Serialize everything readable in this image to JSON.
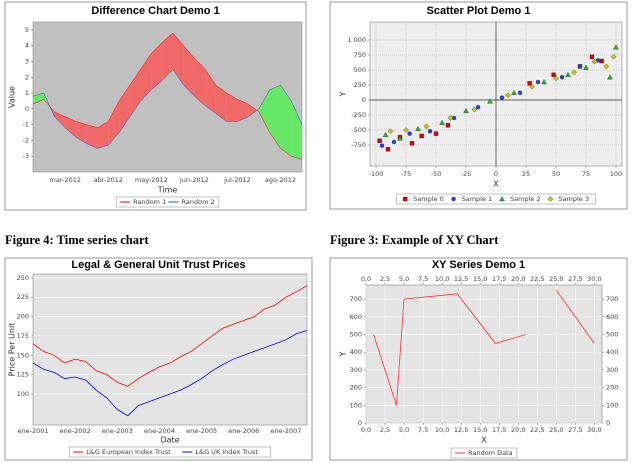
{
  "captions": [
    "Figure 4: Time series chart",
    "Figure 3: Example of XY Chart"
  ],
  "chart_data": [
    {
      "type": "difference",
      "title": "Difference Chart Demo 1",
      "x_label": "Time",
      "y_label": "Value",
      "categories": [
        null,
        null,
        null,
        "mar-2012",
        null,
        null,
        null,
        "abr-2012",
        null,
        null,
        null,
        "may-2012",
        null,
        null,
        null,
        "jun-2012",
        null,
        null,
        null,
        "jul-2012",
        null,
        null,
        null,
        "ago-2012",
        null,
        null
      ],
      "series": [
        {
          "name": "Random 1",
          "color": "#ff0000",
          "values": [
            0.3,
            0.6,
            -0.2,
            -0.5,
            -0.8,
            -1.0,
            -1.2,
            -0.8,
            0.5,
            1.5,
            2.5,
            3.5,
            4.2,
            4.8,
            4.0,
            3.2,
            2.5,
            1.5,
            1.0,
            0.6,
            0.3,
            -0.2,
            -1.5,
            -2.5,
            -3.0,
            -3.2
          ]
        },
        {
          "name": "Random 2",
          "color": "#3050c0",
          "values": [
            0.8,
            1.0,
            -0.5,
            -1.2,
            -1.8,
            -2.2,
            -2.5,
            -2.3,
            -1.5,
            -0.5,
            0.5,
            1.2,
            1.8,
            2.5,
            1.5,
            0.8,
            0.2,
            -0.3,
            -0.8,
            -0.8,
            -0.5,
            0.0,
            1.2,
            1.5,
            0.5,
            -1.0
          ]
        }
      ],
      "positive_color": "#f06868",
      "negative_color": "#66e866",
      "ylim": [
        -4,
        5.5
      ],
      "yticks": [
        -3,
        -2,
        -1,
        0,
        1,
        2,
        3,
        4,
        5
      ],
      "grid": false,
      "plot_background": "#c0c0c0"
    },
    {
      "type": "scatter",
      "title": "Scatter Plot Demo 1",
      "x_label": "X",
      "y_label": "Y",
      "series": [
        {
          "name": "Sample 0",
          "color": "#dd0000",
          "marker": "square",
          "x": [
            -97,
            -90,
            -80,
            -70,
            -62,
            -50,
            -40,
            28,
            48,
            70,
            80,
            88
          ],
          "values": [
            -680,
            -820,
            -620,
            -720,
            -600,
            -560,
            -420,
            280,
            420,
            560,
            720,
            650
          ]
        },
        {
          "name": "Sample 1",
          "color": "#2040ff",
          "marker": "circle",
          "x": [
            -95,
            -85,
            -72,
            -55,
            -35,
            -15,
            5,
            20,
            35,
            55,
            70,
            85
          ],
          "values": [
            -760,
            -700,
            -560,
            -520,
            -300,
            -120,
            40,
            120,
            300,
            380,
            560,
            660
          ]
        },
        {
          "name": "Sample 2",
          "color": "#22bb22",
          "marker": "triangle",
          "x": [
            -92,
            -80,
            -65,
            -45,
            -25,
            -5,
            15,
            40,
            60,
            75,
            95,
            100
          ],
          "values": [
            -580,
            -640,
            -480,
            -380,
            -180,
            -20,
            120,
            300,
            420,
            540,
            380,
            880
          ]
        },
        {
          "name": "Sample 3",
          "color": "#cccc00",
          "marker": "diamond",
          "x": [
            -88,
            -75,
            -58,
            -38,
            -18,
            10,
            30,
            50,
            65,
            82,
            92,
            98
          ],
          "values": [
            -520,
            -500,
            -440,
            -300,
            -160,
            80,
            220,
            360,
            460,
            640,
            560,
            720
          ]
        }
      ],
      "xlim": [
        -105,
        105
      ],
      "xticks": [
        -100,
        -75,
        -50,
        -25,
        0,
        25,
        50,
        75,
        100
      ],
      "ylim": [
        -1100,
        1300
      ],
      "yticks": [
        -750,
        -500,
        -250,
        0,
        250,
        500,
        750,
        {
          "value": 1000,
          "label": "1 000"
        }
      ],
      "grid": true,
      "grid_color": "#b8b8b8",
      "zero_lines": true,
      "plot_background": "#eeeeee"
    },
    {
      "type": "line",
      "title": "Legal & General Unit Trust Prices",
      "x_label": "Date",
      "y_label": "Price Per Unit",
      "categories": [
        "ene-2001",
        null,
        null,
        null,
        "ene-2002",
        null,
        null,
        null,
        "ene-2003",
        null,
        null,
        null,
        "ene-2004",
        null,
        null,
        null,
        "ene-2005",
        null,
        null,
        null,
        "ene-2006",
        null,
        null,
        null,
        "ene-2007",
        null,
        null
      ],
      "series": [
        {
          "name": "L&G European Index Trust",
          "color": "#ff0000",
          "values": [
            165,
            155,
            150,
            140,
            145,
            142,
            130,
            125,
            115,
            110,
            120,
            128,
            135,
            140,
            148,
            155,
            165,
            175,
            185,
            190,
            195,
            200,
            210,
            215,
            225,
            232,
            240
          ]
        },
        {
          "name": "L&G UK Index Trust",
          "color": "#0000ff",
          "values": [
            140,
            132,
            128,
            120,
            122,
            118,
            105,
            95,
            80,
            72,
            85,
            90,
            95,
            100,
            105,
            112,
            120,
            130,
            138,
            145,
            150,
            155,
            160,
            165,
            170,
            178,
            182
          ]
        }
      ],
      "ylim": [
        60,
        255
      ],
      "yticks": [
        100,
        125,
        150,
        175,
        200,
        225,
        250
      ],
      "grid": true,
      "grid_color": "#ffffff",
      "plot_background": "#e4e4e4"
    },
    {
      "type": "line",
      "title": "XY Series Demo 1",
      "x_label": "X",
      "y_label": "Y",
      "x": [
        1,
        4,
        5,
        12,
        17,
        21,
        23,
        25,
        30
      ],
      "series": [
        {
          "name": "Random Data",
          "color": "#ff3030",
          "values": [
            500,
            100,
            700,
            730,
            450,
            500,
            null,
            750,
            450
          ]
        }
      ],
      "xlim": [
        0,
        31
      ],
      "xticks": [
        {
          "value": 0,
          "label": "0,0"
        },
        {
          "value": 2.5,
          "label": "2,5"
        },
        {
          "value": 5,
          "label": "5,0"
        },
        {
          "value": 7.5,
          "label": "7,5"
        },
        {
          "value": 10,
          "label": "10,0"
        },
        {
          "value": 12.5,
          "label": "12,5"
        },
        {
          "value": 15,
          "label": "15,0"
        },
        {
          "value": 17.5,
          "label": "17,5"
        },
        {
          "value": 20,
          "label": "20,0"
        },
        {
          "value": 22.5,
          "label": "22,5"
        },
        {
          "value": 25,
          "label": "25,0"
        },
        {
          "value": 27.5,
          "label": "27,5"
        },
        {
          "value": 30,
          "label": "30,0"
        }
      ],
      "ylim": [
        0,
        780
      ],
      "yticks": [
        0,
        100,
        200,
        300,
        400,
        500,
        600,
        700
      ],
      "mirror_x_axis": true,
      "mirror_y_axis": true,
      "grid": true,
      "grid_color": "#ffffff",
      "plot_background": "#e4e4e4"
    }
  ]
}
